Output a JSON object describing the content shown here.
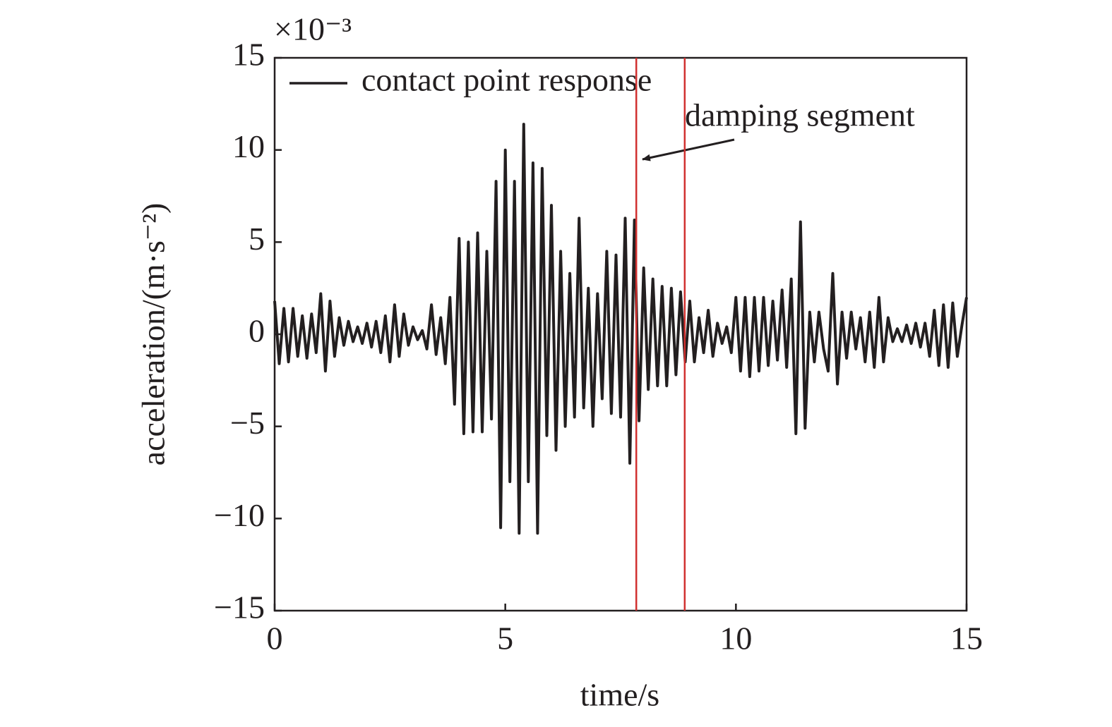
{
  "chart_data": {
    "type": "line",
    "xlabel": "time/s",
    "ylabel": "acceleration/(m·s⁻²)",
    "y_multiplier": "×10⁻³",
    "annotation": "damping segment",
    "legend": "upper left",
    "xlim": [
      0,
      15
    ],
    "xticks": [
      0,
      5,
      10,
      15
    ],
    "ylim": [
      -15,
      15
    ],
    "yticks": [
      {
        "value": -15,
        "label": "−15"
      },
      {
        "value": -10,
        "label": "−10"
      },
      {
        "value": -5,
        "label": "−5"
      },
      0,
      5,
      10,
      15
    ],
    "vlines": [
      {
        "x": 7.84,
        "color": "#d0302f"
      },
      {
        "x": 8.89,
        "color": "#d0302f"
      }
    ],
    "x": [
      0,
      0.1,
      0.2,
      0.3,
      0.4,
      0.5,
      0.6,
      0.7,
      0.8,
      0.9,
      1,
      1.1,
      1.2,
      1.3,
      1.4,
      1.5,
      1.6,
      1.7,
      1.8,
      1.9,
      2,
      2.1,
      2.2,
      2.3,
      2.4,
      2.5,
      2.6,
      2.7,
      2.8,
      2.9,
      3,
      3.1,
      3.2,
      3.3,
      3.4,
      3.5,
      3.6,
      3.7,
      3.8,
      3.9,
      4,
      4.1,
      4.2,
      4.3,
      4.4,
      4.5,
      4.6,
      4.7,
      4.8,
      4.9,
      5,
      5.1,
      5.2,
      5.3,
      5.4,
      5.5,
      5.6,
      5.7,
      5.8,
      5.9,
      6,
      6.1,
      6.2,
      6.3,
      6.4,
      6.5,
      6.6,
      6.7,
      6.8,
      6.9,
      7,
      7.1,
      7.2,
      7.3,
      7.4,
      7.5,
      7.6,
      7.7,
      7.8,
      7.9,
      8,
      8.1,
      8.2,
      8.3,
      8.4,
      8.5,
      8.6,
      8.7,
      8.8,
      8.9,
      9,
      9.1,
      9.2,
      9.3,
      9.4,
      9.5,
      9.6,
      9.7,
      9.8,
      9.9,
      10,
      10.1,
      10.2,
      10.3,
      10.4,
      10.5,
      10.6,
      10.7,
      10.8,
      10.9,
      11,
      11.1,
      11.2,
      11.3,
      11.4,
      11.5,
      11.6,
      11.7,
      11.8,
      11.9,
      12,
      12.1,
      12.2,
      12.3,
      12.4,
      12.5,
      12.6,
      12.7,
      12.8,
      12.9,
      13,
      13.1,
      13.2,
      13.3,
      13.4,
      13.5,
      13.6,
      13.7,
      13.8,
      13.9,
      14,
      14.1,
      14.2,
      14.3,
      14.4,
      14.5,
      14.6,
      14.7,
      14.8,
      14.9,
      15
    ],
    "series": [
      {
        "name": "contact point response",
        "color": "#231f20",
        "values": [
          1.8,
          -1.6,
          1.4,
          -1.5,
          1.4,
          -1.2,
          1.0,
          -1.3,
          1.1,
          -1.0,
          2.2,
          -2.0,
          1.8,
          -1.2,
          0.9,
          -0.6,
          0.7,
          -0.4,
          0.4,
          -0.5,
          0.6,
          -0.7,
          0.7,
          -1.0,
          1.0,
          -1.5,
          1.6,
          -1.2,
          1.1,
          -0.6,
          0.4,
          -0.3,
          0.2,
          -0.8,
          1.6,
          -1.1,
          0.9,
          -1.6,
          2.0,
          -3.8,
          5.2,
          -5.4,
          5.0,
          -5.3,
          5.5,
          -5.3,
          4.5,
          -4.6,
          8.3,
          -10.5,
          10.0,
          -8.0,
          8.3,
          -10.8,
          11.4,
          -8.0,
          9.3,
          -10.8,
          9.0,
          -5.5,
          7.0,
          -6.3,
          4.5,
          -5.0,
          3.3,
          -4.5,
          6.3,
          -4.0,
          2.5,
          -5.0,
          2.2,
          -3.5,
          4.5,
          -4.3,
          4.3,
          -4.5,
          6.3,
          -7.0,
          6.2,
          -4.7,
          3.6,
          -3.0,
          3.0,
          -2.8,
          2.6,
          -2.8,
          2.5,
          -2.2,
          2.3,
          -1.5,
          1.8,
          -1.5,
          0.9,
          -1.0,
          1.3,
          -1.2,
          0.6,
          -0.5,
          0.4,
          -1.0,
          2.0,
          -2.0,
          2.0,
          -2.3,
          2.0,
          -2.0,
          2.0,
          -1.7,
          1.8,
          -1.4,
          2.4,
          -1.8,
          3.0,
          -5.4,
          6.1,
          -5.1,
          1.2,
          -1.5,
          1.2,
          -0.8,
          -2.0,
          3.3,
          -2.7,
          1.2,
          -1.3,
          1.2,
          -0.8,
          0.9,
          -1.5,
          1.2,
          -1.8,
          2.0,
          -1.5,
          0.9,
          -0.4,
          0.3,
          -0.4,
          0.5,
          -0.5,
          0.6,
          -0.7,
          0.6,
          -1.2,
          1.3,
          -1.7,
          1.6,
          -1.8,
          1.7,
          -1.2,
          0.5,
          2.0
        ]
      }
    ]
  }
}
